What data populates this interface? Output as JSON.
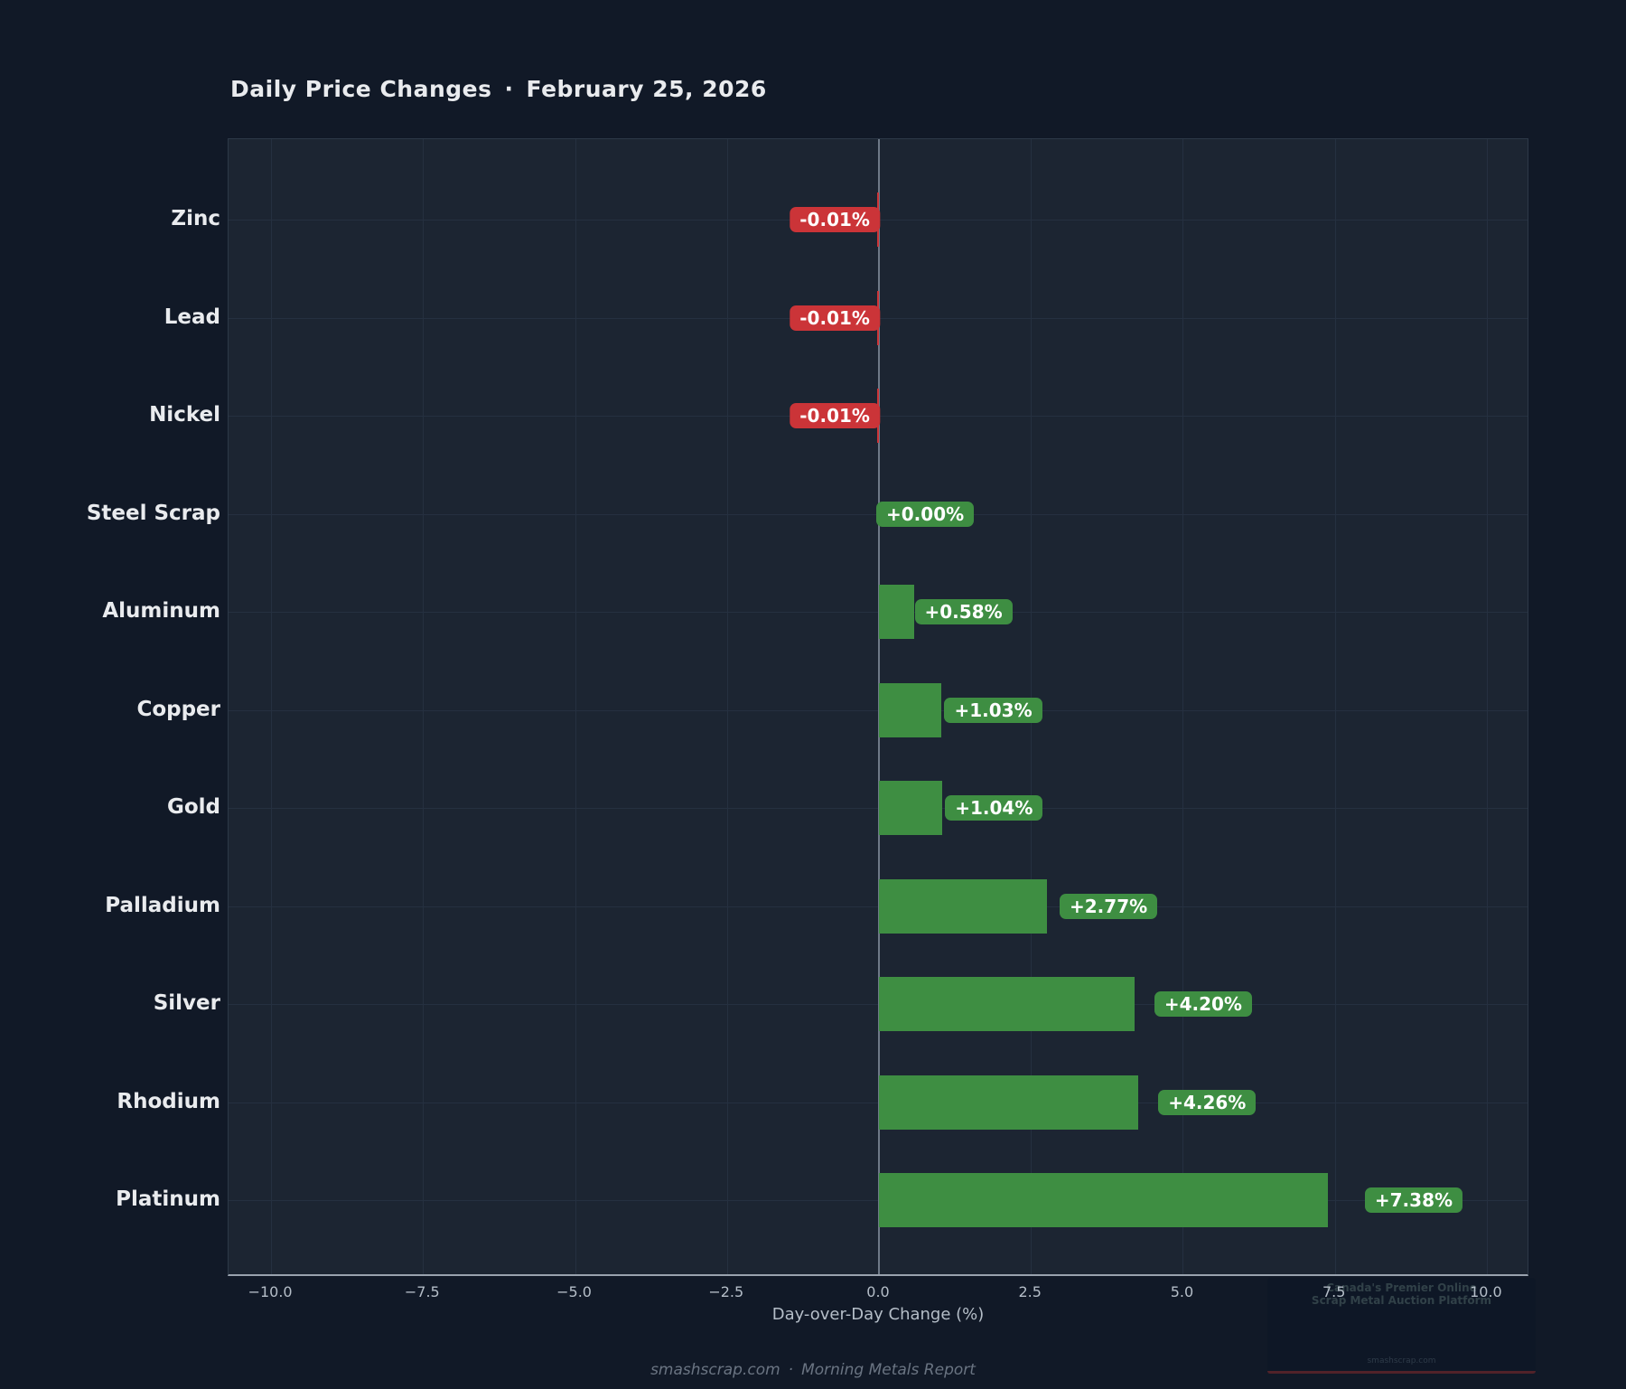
{
  "title": {
    "main": "Daily Price Changes",
    "separator": "·",
    "date": "February 25, 2026"
  },
  "chart_data": {
    "type": "bar",
    "orientation": "horizontal",
    "categories": [
      "Zinc",
      "Lead",
      "Nickel",
      "Steel Scrap",
      "Aluminum",
      "Copper",
      "Gold",
      "Palladium",
      "Silver",
      "Rhodium",
      "Platinum"
    ],
    "values": [
      -0.01,
      -0.01,
      -0.01,
      0.0,
      0.58,
      1.03,
      1.04,
      2.77,
      4.2,
      4.26,
      7.38
    ],
    "value_labels": [
      "-0.01%",
      "-0.01%",
      "-0.01%",
      "+0.00%",
      "+0.58%",
      "+1.03%",
      "+1.04%",
      "+2.77%",
      "+4.20%",
      "+4.26%",
      "+7.38%"
    ],
    "xlabel": "Day-over-Day Change (%)",
    "xlim": [
      -10.7,
      10.7
    ],
    "xticks": [
      -10.0,
      -7.5,
      -5.0,
      -2.5,
      0.0,
      2.5,
      5.0,
      7.5,
      10.0
    ],
    "xtick_labels": [
      "−10.0",
      "−7.5",
      "−5.0",
      "−2.5",
      "0.0",
      "2.5",
      "5.0",
      "7.5",
      "10.0"
    ],
    "grid": true,
    "legend": null,
    "colors": {
      "positive": "#3e8e42",
      "negative": "#cb3438"
    }
  },
  "footer": {
    "site": "smashscrap.com",
    "separator": "·",
    "report": "Morning Metals Report"
  },
  "watermark": {
    "line1": "Canada's Premier Online",
    "line2": "Scrap Metal Auction Platform",
    "line3": "smashscrap.com"
  }
}
